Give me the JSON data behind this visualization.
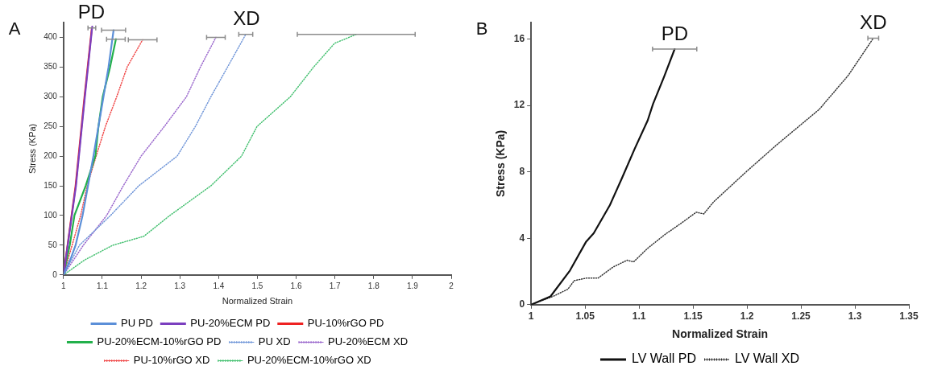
{
  "chart_data": [
    {
      "type": "line",
      "xlabel": "Normalized Strain",
      "ylabel": "Stress (KPa)",
      "xlim": [
        1,
        2
      ],
      "xticks": [
        1,
        1.1,
        1.2,
        1.3,
        1.4,
        1.5,
        1.6,
        1.7,
        1.8,
        1.9,
        2
      ],
      "ylim": [
        0,
        425
      ],
      "yticks": [
        0,
        50,
        100,
        150,
        200,
        250,
        300,
        350,
        400
      ],
      "legend": "bottom",
      "marker": "none",
      "annotations": [
        "A",
        {
          "text": "PD",
          "x": 1.072,
          "y": 416
        },
        {
          "text": "XD",
          "x": 1.472,
          "y": 405
        }
      ],
      "series": [
        {
          "name": "PU PD",
          "color": "#5b8fd8",
          "line_style": "solid",
          "x": [
            1,
            1.02,
            1.031,
            1.049,
            1.063,
            1.077,
            1.09,
            1.103,
            1.116,
            1.129
          ],
          "values": [
            0,
            30,
            50,
            100,
            150,
            200,
            250,
            300,
            350,
            412
          ],
          "xerrors": [
            null,
            null,
            null,
            null,
            null,
            null,
            null,
            null,
            null,
            0.031
          ]
        },
        {
          "name": "PU-20%ECM PD",
          "color": "#7b3fbf",
          "line_style": "solid",
          "x": [
            1,
            1.032,
            1.055,
            1.074
          ],
          "values": [
            0,
            150,
            300,
            418
          ],
          "xerrors": [
            null,
            null,
            null,
            null
          ]
        },
        {
          "name": "PU-10%rGO PD",
          "color": "#ee2222",
          "line_style": "solid",
          "x": [
            1,
            1.031,
            1.054,
            1.073
          ],
          "values": [
            0,
            150,
            300,
            416
          ],
          "xerrors": [
            null,
            null,
            null,
            0.01
          ]
        },
        {
          "name": "PU-20%ECM-10%rGO PD",
          "color": "#22b04b",
          "line_style": "solid",
          "x": [
            1,
            1.016,
            1.028,
            1.057,
            1.082,
            1.09,
            1.101,
            1.12,
            1.135
          ],
          "values": [
            0,
            50,
            100,
            150,
            200,
            250,
            300,
            350,
            397
          ],
          "xerrors": [
            null,
            null,
            null,
            null,
            null,
            null,
            null,
            null,
            0.024
          ]
        },
        {
          "name": "PU XD",
          "color": "#6f95d8",
          "line_style": "dotted",
          "x": [
            1,
            1.041,
            1.121,
            1.194,
            1.293,
            1.34,
            1.38,
            1.423,
            1.47
          ],
          "values": [
            0,
            50,
            100,
            150,
            200,
            250,
            300,
            350,
            405
          ],
          "xerrors": [
            null,
            null,
            null,
            null,
            null,
            null,
            null,
            null,
            0.018
          ]
        },
        {
          "name": "PU-20%ECM XD",
          "color": "#9966cc",
          "line_style": "dotted",
          "x": [
            1,
            1.051,
            1.111,
            1.154,
            1.2,
            1.26,
            1.317,
            1.353,
            1.393
          ],
          "values": [
            0,
            50,
            100,
            150,
            200,
            250,
            300,
            350,
            400
          ],
          "xerrors": [
            null,
            null,
            null,
            null,
            null,
            null,
            null,
            null,
            0.024
          ]
        },
        {
          "name": "PU-10%rGO XD",
          "color": "#f04848",
          "line_style": "dotted",
          "x": [
            1,
            1.044,
            1.061,
            1.084,
            1.108,
            1.137,
            1.164,
            1.204
          ],
          "values": [
            0,
            100,
            150,
            200,
            250,
            300,
            350,
            396
          ],
          "xerrors": [
            null,
            null,
            null,
            null,
            null,
            null,
            null,
            0.037
          ]
        },
        {
          "name": "PU-20%ECM-10%rGO XD",
          "color": "#44c070",
          "line_style": "dotted",
          "x": [
            1,
            1.054,
            1.127,
            1.207,
            1.274,
            1.38,
            1.459,
            1.499,
            1.585,
            1.645,
            1.699,
            1.755
          ],
          "values": [
            0,
            25,
            50,
            65,
            100,
            150,
            200,
            250,
            300,
            350,
            390,
            405
          ],
          "xerrors": [
            null,
            null,
            null,
            null,
            null,
            null,
            null,
            null,
            null,
            null,
            null,
            0.152
          ]
        }
      ]
    },
    {
      "type": "line",
      "xlabel": "Normalized Strain",
      "ylabel": "Stress (KPa)",
      "xlim": [
        1,
        1.35
      ],
      "xticks": [
        1,
        1.05,
        1.1,
        1.15,
        1.2,
        1.25,
        1.3,
        1.35
      ],
      "ylim": [
        0,
        17
      ],
      "yticks": [
        0,
        4,
        8,
        12,
        16
      ],
      "legend": "bottom",
      "marker": "none",
      "annotations": [
        "B",
        {
          "text": "PD",
          "x": 1.133,
          "y": 15.4
        },
        {
          "text": "XD",
          "x": 1.317,
          "y": 16.05
        }
      ],
      "series": [
        {
          "name": "LV Wall PD",
          "color": "#111111",
          "line_style": "solid",
          "x": [
            1,
            1.018,
            1.036,
            1.051,
            1.058,
            1.073,
            1.084,
            1.096,
            1.108,
            1.113,
            1.123,
            1.133
          ],
          "values": [
            0,
            0.5,
            2.06,
            3.8,
            4.3,
            6,
            7.6,
            9.4,
            11.1,
            12.1,
            13.7,
            15.4
          ],
          "xerrors": [
            null,
            null,
            null,
            null,
            null,
            null,
            null,
            null,
            null,
            null,
            null,
            0.0205
          ]
        },
        {
          "name": "LV Wall XD",
          "color": "#333333",
          "line_style": "dotted",
          "x": [
            1,
            1.0204,
            1.034,
            1.04,
            1.051,
            1.062,
            1.076,
            1.089,
            1.095,
            1.108,
            1.124,
            1.14,
            1.153,
            1.16,
            1.169,
            1.2,
            1.227,
            1.267,
            1.294,
            1.317
          ],
          "values": [
            0,
            0.5,
            0.93,
            1.45,
            1.6,
            1.6,
            2.27,
            2.68,
            2.58,
            3.4,
            4.23,
            4.95,
            5.57,
            5.47,
            6.19,
            8.05,
            9.6,
            11.77,
            13.83,
            16.05
          ],
          "xerrors": [
            null,
            null,
            null,
            null,
            null,
            null,
            null,
            null,
            null,
            null,
            null,
            null,
            null,
            null,
            null,
            null,
            null,
            null,
            null,
            0.005
          ]
        }
      ]
    }
  ]
}
